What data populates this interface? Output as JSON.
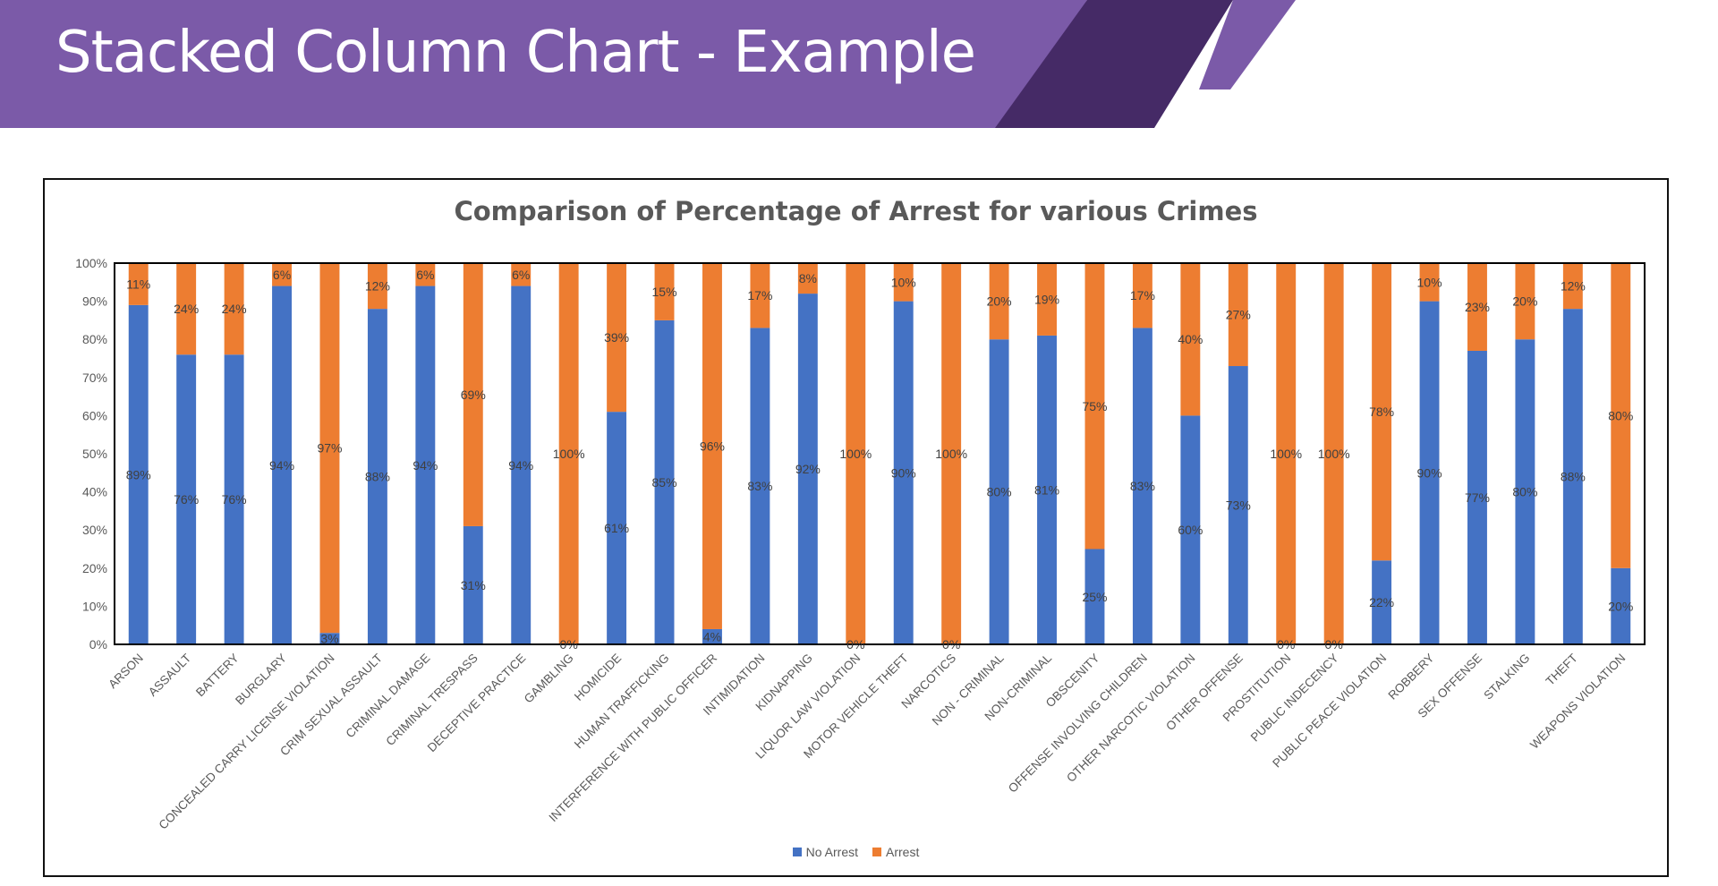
{
  "slide": {
    "title": "Stacked Column Chart - Example"
  },
  "colors": {
    "banner": "#7b5aa8",
    "banner_dark": "#452a66",
    "no_arrest": "#4472c4",
    "arrest": "#ed7d31"
  },
  "chart_data": {
    "type": "bar",
    "stacked": true,
    "title": "Comparison of Percentage of Arrest for various Crimes",
    "xlabel": "",
    "ylabel": "",
    "ylim": [
      0,
      100
    ],
    "y_ticks": [
      "0%",
      "10%",
      "20%",
      "30%",
      "40%",
      "50%",
      "60%",
      "70%",
      "80%",
      "90%",
      "100%"
    ],
    "legend_position": "bottom",
    "categories": [
      "ARSON",
      "ASSAULT",
      "BATTERY",
      "BURGLARY",
      "CONCEALED CARRY LICENSE VIOLATION",
      "CRIM SEXUAL ASSAULT",
      "CRIMINAL DAMAGE",
      "CRIMINAL TRESPASS",
      "DECEPTIVE PRACTICE",
      "GAMBLING",
      "HOMICIDE",
      "HUMAN TRAFFICKING",
      "INTERFERENCE WITH PUBLIC OFFICER",
      "INTIMIDATION",
      "KIDNAPPING",
      "LIQUOR LAW VIOLATION",
      "MOTOR VEHICLE THEFT",
      "NARCOTICS",
      "NON - CRIMINAL",
      "NON-CRIMINAL",
      "OBSCENITY",
      "OFFENSE INVOLVING CHILDREN",
      "OTHER NARCOTIC VIOLATION",
      "OTHER OFFENSE",
      "PROSTITUTION",
      "PUBLIC INDECENCY",
      "PUBLIC PEACE VIOLATION",
      "ROBBERY",
      "SEX OFFENSE",
      "STALKING",
      "THEFT",
      "WEAPONS VIOLATION"
    ],
    "series": [
      {
        "name": "No Arrest",
        "values": [
          89,
          76,
          76,
          94,
          3,
          88,
          94,
          31,
          94,
          0,
          61,
          85,
          4,
          83,
          92,
          0,
          90,
          0,
          80,
          81,
          25,
          83,
          60,
          73,
          0,
          0,
          22,
          90,
          77,
          80,
          88,
          20
        ]
      },
      {
        "name": "Arrest",
        "values": [
          11,
          24,
          24,
          6,
          97,
          12,
          6,
          69,
          6,
          100,
          39,
          15,
          96,
          17,
          8,
          100,
          10,
          100,
          20,
          19,
          75,
          17,
          40,
          27,
          100,
          100,
          78,
          10,
          23,
          20,
          12,
          80
        ]
      }
    ]
  }
}
